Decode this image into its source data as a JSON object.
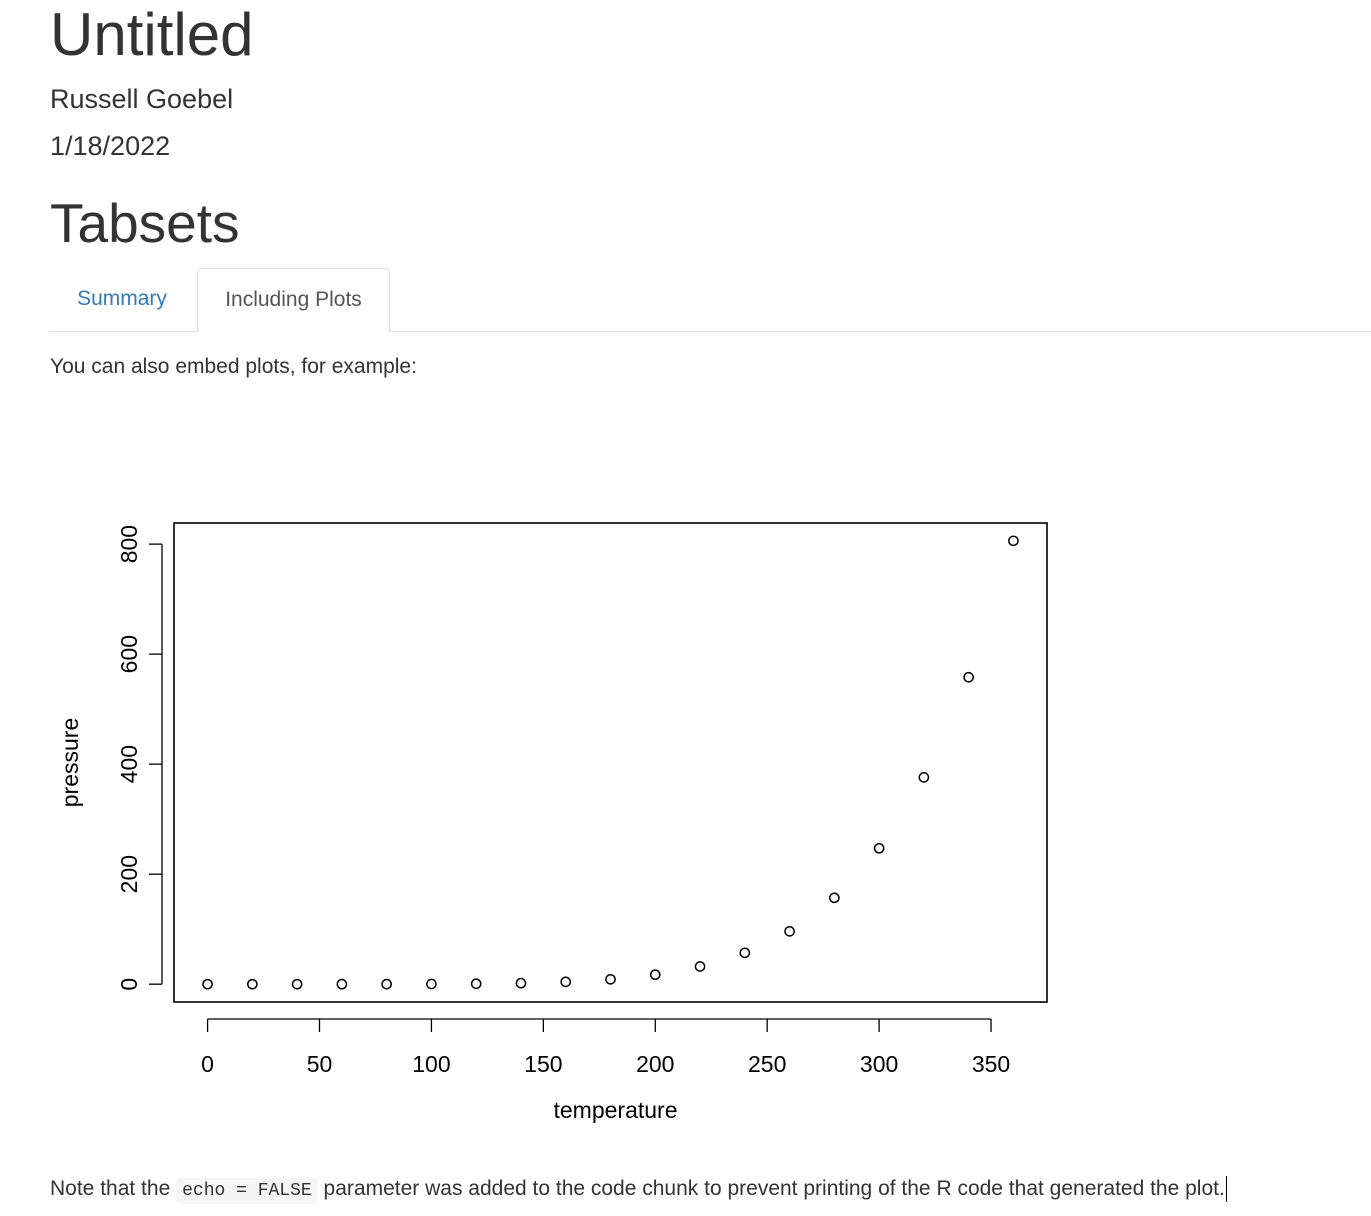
{
  "document": {
    "title": "Untitled",
    "author": "Russell Goebel",
    "date": "1/18/2022"
  },
  "section": {
    "heading": "Tabsets",
    "tabs": [
      {
        "label": "Summary",
        "active": false
      },
      {
        "label": "Including Plots",
        "active": true
      }
    ],
    "intro": "You can also embed plots, for example:",
    "note_before": "Note that the ",
    "note_code": "echo = FALSE",
    "note_after": " parameter was added to the code chunk to prevent printing of the R code that generated the plot."
  },
  "colors": {
    "link": "#337ab7",
    "text": "#333333",
    "tab_border": "#dddddd",
    "code_bg": "#f5f5f5"
  },
  "chart_data": {
    "type": "scatter",
    "title": "",
    "xlabel": "temperature",
    "ylabel": "pressure",
    "xlim": [
      -15,
      375
    ],
    "ylim": [
      -32.4,
      838.4
    ],
    "xticks": [
      0,
      50,
      100,
      150,
      200,
      250,
      300,
      350
    ],
    "yticks": [
      0,
      200,
      400,
      600,
      800
    ],
    "marker": "open-circle",
    "grid": false,
    "x": [
      0,
      20,
      40,
      60,
      80,
      100,
      120,
      140,
      160,
      180,
      200,
      220,
      240,
      260,
      280,
      300,
      320,
      340,
      360
    ],
    "y": [
      0.0002,
      0.0012,
      0.006,
      0.03,
      0.09,
      0.27,
      0.75,
      1.85,
      4.2,
      8.8,
      17.3,
      32.1,
      57,
      96,
      157,
      247,
      376,
      558,
      806
    ]
  }
}
